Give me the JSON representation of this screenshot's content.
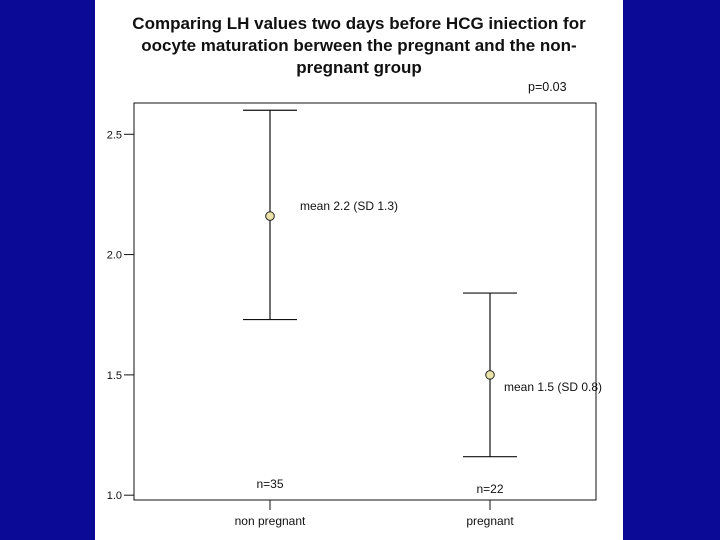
{
  "slide": {
    "title_lines": [
      "Comparing LH values two days before HCG iniection for",
      "oocyte maturation berween the pregnant and the non-",
      "pregnant group"
    ],
    "p_value": "p=0.03",
    "background_color": "#0a0a96"
  },
  "chart_data": {
    "type": "errorbar",
    "title": "Comparing LH values two days before HCG iniection for oocyte maturation berween the pregnant and the non-pregnant group",
    "categories": [
      "non pregnant",
      "pregnant"
    ],
    "mean": [
      2.16,
      1.5
    ],
    "upper": [
      2.6,
      1.84
    ],
    "lower": [
      1.73,
      1.16
    ],
    "mean_labels": [
      "mean 2.2 (SD 1.3)",
      "mean 1.5 (SD 0.8)"
    ],
    "n_labels": [
      "n=35",
      "n=22"
    ],
    "ylim": [
      0.98,
      2.63
    ],
    "yticks": [
      1.0,
      1.5,
      2.0,
      2.5
    ],
    "ytick_labels": [
      "1.0",
      "1.5",
      "2.0",
      "2.5"
    ],
    "marker_color": "#e9e3a8",
    "annotation": "p=0.03",
    "xlabel": "",
    "ylabel": ""
  }
}
